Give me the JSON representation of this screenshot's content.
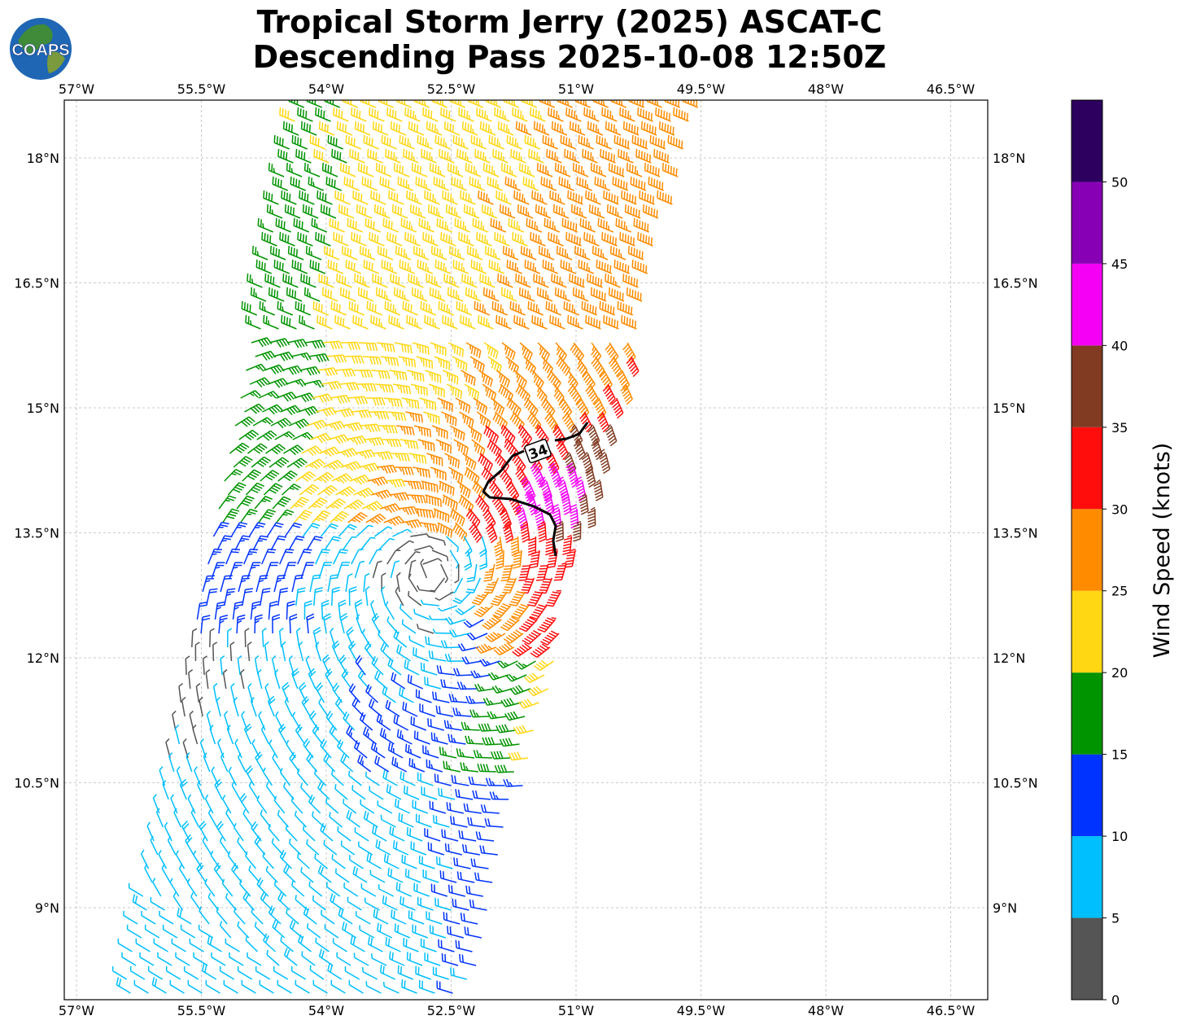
{
  "title": {
    "line1": "Tropical Storm Jerry (2025) ASCAT-C",
    "line2": "Descending Pass 2025-10-08 12:50Z"
  },
  "logo": {
    "text": "COAPS",
    "icon": "globe-logo-icon"
  },
  "map": {
    "lon_ticks": [
      "57°W",
      "55.5°W",
      "54°W",
      "52.5°W",
      "51°W",
      "49.5°W",
      "48°W",
      "46.5°W"
    ],
    "lat_ticks": [
      "18°N",
      "16.5°N",
      "15°N",
      "13.5°N",
      "12°N",
      "10.5°N",
      "9°N"
    ],
    "lon_range": [
      -57.15,
      -46.05
    ],
    "lat_range": [
      7.9,
      18.7
    ],
    "grid": true,
    "contour_label": "34",
    "contour_color": "#000000"
  },
  "colorbar": {
    "label": "Wind Speed (knots)",
    "ticks": [
      "0",
      "5",
      "10",
      "15",
      "20",
      "25",
      "30",
      "35",
      "40",
      "45",
      "50"
    ],
    "colors": [
      "#555555",
      "#00bfff",
      "#0033ff",
      "#009400",
      "#ffd713",
      "#ff8c00",
      "#ff0d0d",
      "#803b22",
      "#f500f5",
      "#8800b5",
      "#2d0060"
    ]
  }
}
